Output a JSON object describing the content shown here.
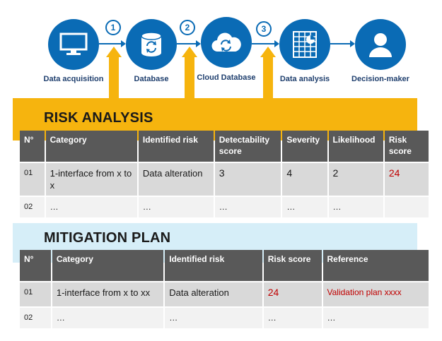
{
  "flow": {
    "nodes": [
      {
        "label": "Data acquisition",
        "icon": "monitor-icon"
      },
      {
        "label": "Database",
        "icon": "database-icon"
      },
      {
        "label": "Cloud Database",
        "icon": "cloud-icon"
      },
      {
        "label": "Data analysis",
        "icon": "spreadsheet-icon"
      },
      {
        "label": "Decision-maker",
        "icon": "user-icon"
      }
    ],
    "steps": [
      "1",
      "2",
      "3"
    ]
  },
  "risk_analysis": {
    "title": "RISK ANALYSIS",
    "headers": [
      "N°",
      "Category",
      "Identified risk",
      "Detectability score",
      "Severity",
      "Likelihood",
      "Risk score"
    ],
    "rows": [
      [
        "01",
        "1-interface from x to x",
        "Data alteration",
        "3",
        "4",
        "2",
        "24"
      ],
      [
        "02",
        "…",
        "…",
        "…",
        "…",
        "…",
        ""
      ]
    ]
  },
  "mitigation_plan": {
    "title": "MITIGATION PLAN",
    "headers": [
      "N°",
      "Category",
      "Identified risk",
      "Risk score",
      "Reference"
    ],
    "rows": [
      [
        "01",
        "1-interface from x to xx",
        "Data alteration",
        "24",
        "Validation plan xxxx"
      ],
      [
        "02",
        "…",
        "…",
        "…",
        "…"
      ]
    ]
  },
  "colors": {
    "node_blue": "#0a6bb5",
    "risk_band": "#f6b40e",
    "mitigation_band": "#d6eef8",
    "header_gray": "#595959",
    "row_gray": "#d9d9d9",
    "row_light": "#f2f2f2",
    "risk_red": "#c00000"
  }
}
